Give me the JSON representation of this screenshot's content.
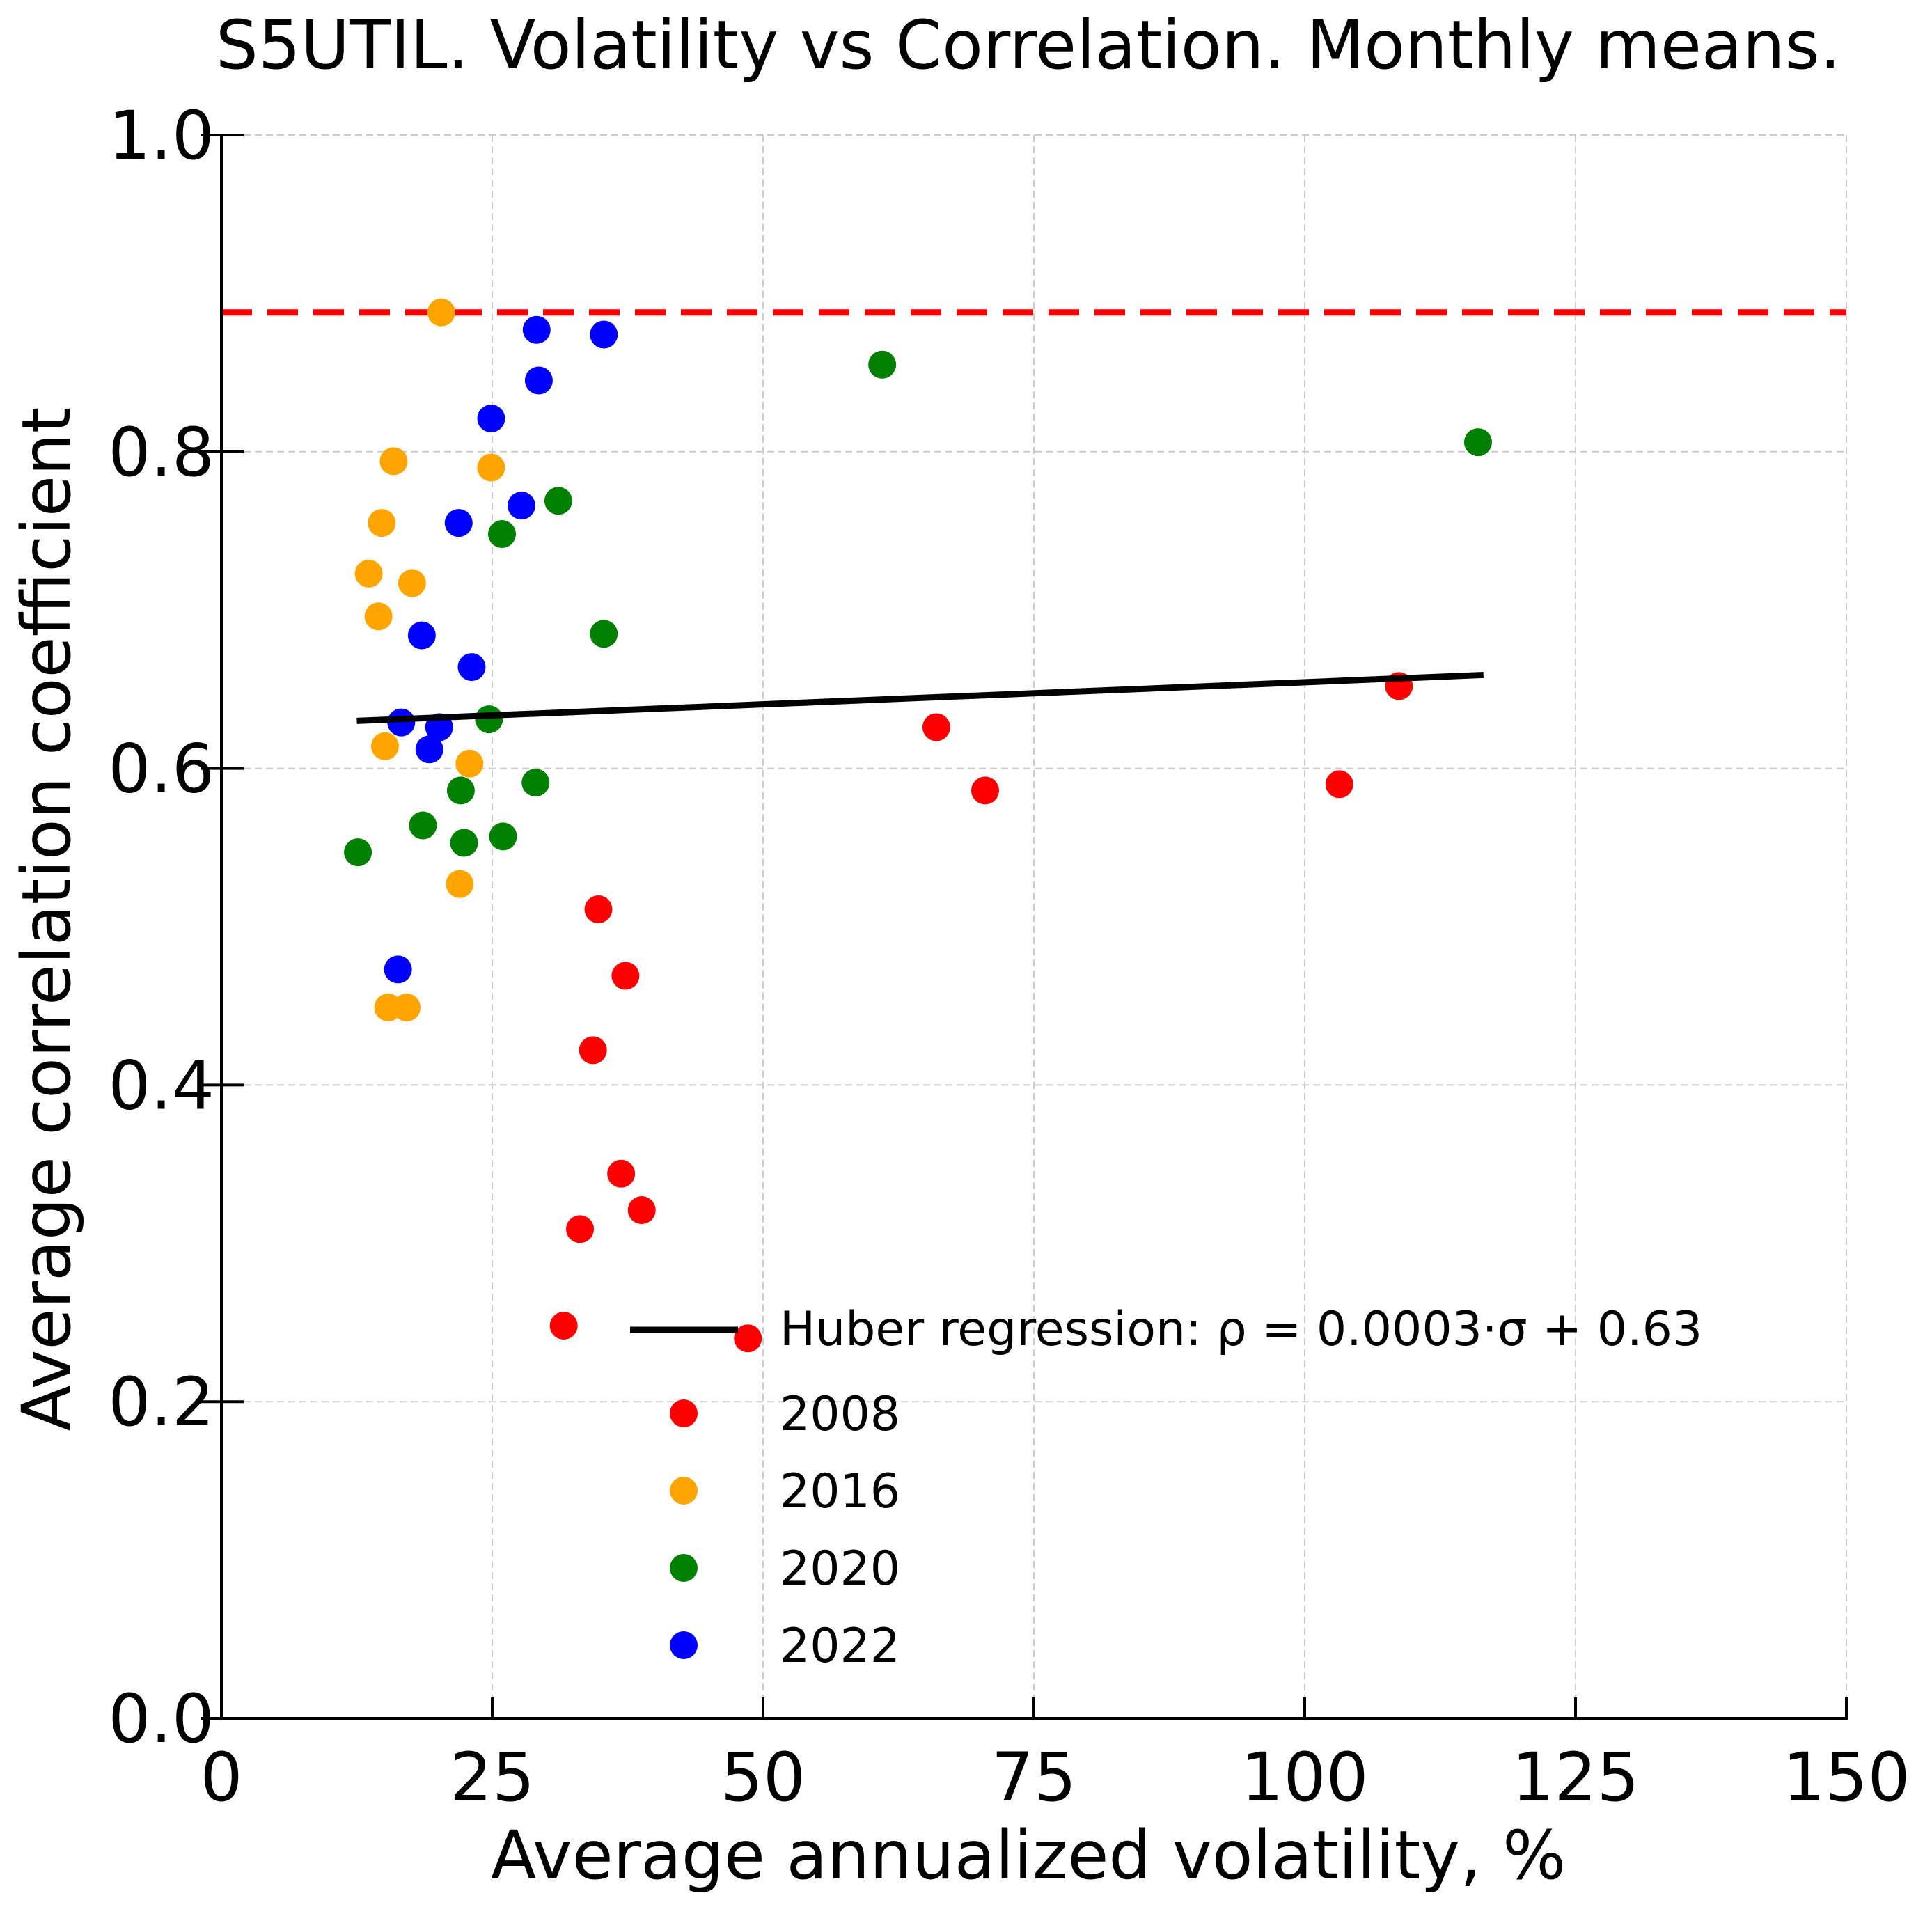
{
  "chart_data": {
    "type": "scatter",
    "title": "S5UTIL. Volatility vs Correlation. Monthly means.",
    "xlabel": "Average annualized volatility, %",
    "ylabel": "Average correlation coefficient",
    "xlim": [
      0,
      150
    ],
    "ylim": [
      0,
      1.0
    ],
    "xticks": [
      0,
      25,
      50,
      75,
      100,
      125,
      150
    ],
    "xtick_labels": [
      "0",
      "25",
      "50",
      "75",
      "100",
      "125",
      "150"
    ],
    "yticks": [
      0.0,
      0.2,
      0.4,
      0.6,
      0.8,
      1.0
    ],
    "ytick_labels": [
      "0.0",
      "0.2",
      "0.4",
      "0.6",
      "0.8",
      "1.0"
    ],
    "grid": true,
    "legend_position": "bottom-right",
    "reference_line": {
      "y": 0.888,
      "color": "#ff0000",
      "style": "dashed"
    },
    "regression": {
      "label": "Huber regression: ρ = 0.0003·σ + 0.63",
      "x": [
        12.5,
        116.5
      ],
      "y": [
        0.63,
        0.659
      ],
      "color": "#000000"
    },
    "series": [
      {
        "name": "2008",
        "color": "#ff0000",
        "points": [
          [
            31.6,
            0.248
          ],
          [
            33.1,
            0.309
          ],
          [
            34.3,
            0.422
          ],
          [
            34.8,
            0.511
          ],
          [
            36.9,
            0.344
          ],
          [
            37.3,
            0.469
          ],
          [
            38.8,
            0.321
          ],
          [
            48.6,
            0.24
          ],
          [
            66.0,
            0.626
          ],
          [
            70.5,
            0.586
          ],
          [
            103.2,
            0.59
          ],
          [
            108.7,
            0.652
          ]
        ]
      },
      {
        "name": "2016",
        "color": "#ffa500",
        "points": [
          [
            13.6,
            0.723
          ],
          [
            14.5,
            0.696
          ],
          [
            14.8,
            0.755
          ],
          [
            15.1,
            0.614
          ],
          [
            15.4,
            0.449
          ],
          [
            15.9,
            0.794
          ],
          [
            17.1,
            0.449
          ],
          [
            17.6,
            0.717
          ],
          [
            20.3,
            0.888
          ],
          [
            22.0,
            0.527
          ],
          [
            22.9,
            0.603
          ],
          [
            24.9,
            0.79
          ]
        ]
      },
      {
        "name": "2020",
        "color": "#008000",
        "points": [
          [
            12.6,
            0.547
          ],
          [
            18.6,
            0.564
          ],
          [
            22.1,
            0.586
          ],
          [
            22.4,
            0.553
          ],
          [
            24.7,
            0.631
          ],
          [
            25.9,
            0.748
          ],
          [
            26.0,
            0.557
          ],
          [
            29.0,
            0.591
          ],
          [
            31.1,
            0.769
          ],
          [
            35.3,
            0.685
          ],
          [
            61.0,
            0.855
          ],
          [
            116.0,
            0.806
          ]
        ]
      },
      {
        "name": "2022",
        "color": "#0000ff",
        "points": [
          [
            16.3,
            0.473
          ],
          [
            16.6,
            0.629
          ],
          [
            18.5,
            0.684
          ],
          [
            19.2,
            0.612
          ],
          [
            20.1,
            0.626
          ],
          [
            21.9,
            0.755
          ],
          [
            23.1,
            0.664
          ],
          [
            24.9,
            0.821
          ],
          [
            27.7,
            0.766
          ],
          [
            29.1,
            0.877
          ],
          [
            29.3,
            0.845
          ],
          [
            35.3,
            0.874
          ]
        ]
      }
    ]
  }
}
